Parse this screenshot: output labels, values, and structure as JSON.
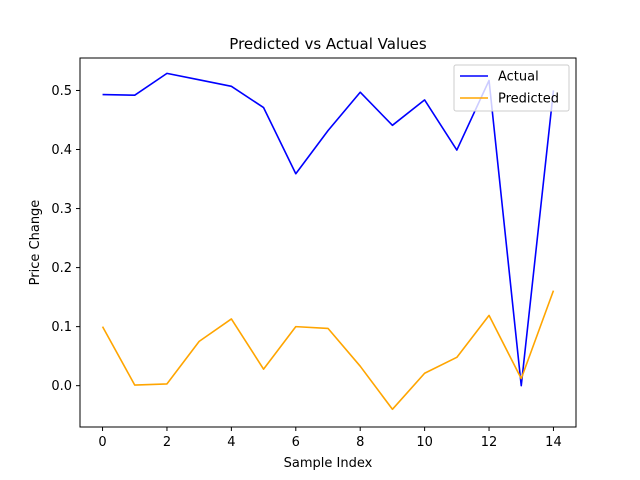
{
  "chart_data": {
    "type": "line",
    "title": "Predicted vs Actual Values",
    "xlabel": "Sample Index",
    "ylabel": "Price Change",
    "xlim": [
      -0.7,
      14.7
    ],
    "ylim": [
      -0.07,
      0.555
    ],
    "xticks": [
      0,
      2,
      4,
      6,
      8,
      10,
      12,
      14
    ],
    "yticks": [
      0.0,
      0.1,
      0.2,
      0.3,
      0.4,
      0.5
    ],
    "xtick_labels": [
      "0",
      "2",
      "4",
      "6",
      "8",
      "10",
      "12",
      "14"
    ],
    "ytick_labels": [
      "0.0",
      "0.1",
      "0.2",
      "0.3",
      "0.4",
      "0.5"
    ],
    "grid": false,
    "legend_position": "top-right",
    "x": [
      0,
      1,
      2,
      3,
      4,
      5,
      6,
      7,
      8,
      9,
      10,
      11,
      12,
      13,
      14
    ],
    "series": [
      {
        "name": "Actual",
        "color": "#0000ff",
        "values": [
          0.493,
          0.492,
          0.529,
          0.518,
          0.507,
          0.471,
          0.359,
          0.432,
          0.497,
          0.441,
          0.484,
          0.399,
          0.517,
          0.0,
          0.5
        ]
      },
      {
        "name": "Predicted",
        "color": "#ffa500",
        "values": [
          0.1,
          0.001,
          0.003,
          0.075,
          0.113,
          0.028,
          0.1,
          0.097,
          0.033,
          -0.04,
          0.021,
          0.048,
          0.119,
          0.012,
          0.161
        ]
      }
    ]
  }
}
